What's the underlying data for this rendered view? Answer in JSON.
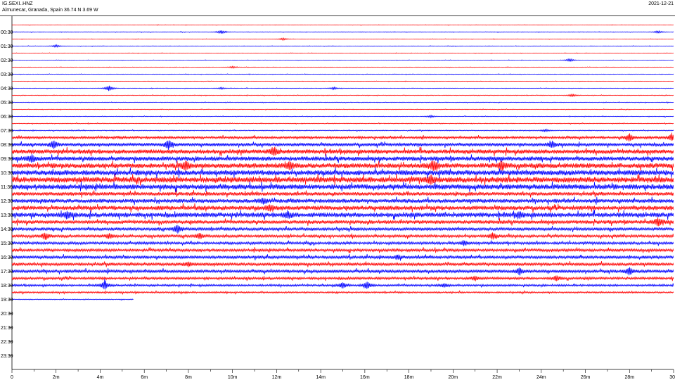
{
  "header": {
    "station": "IG.SEXI..HNZ",
    "location": "Almunecar, Granada, Spain  36.74 N 3.69 W",
    "date": "2021-12-21"
  },
  "chart_data": {
    "type": "line",
    "title": "IG.SEXI..HNZ",
    "subtitle": "Almunecar, Granada, Spain  36.74 N 3.69 W",
    "date": "2021-12-21",
    "xlabel": "",
    "ylabel": "",
    "xlim": [
      0,
      30
    ],
    "x_ticks": [
      "0",
      "2m",
      "4m",
      "6m",
      "8m",
      "10m",
      "12m",
      "14m",
      "16m",
      "18m",
      "20m",
      "22m",
      "24m",
      "26m",
      "28m",
      "30"
    ],
    "y_tick_labels": [
      "00:30",
      "01:30",
      "02:30",
      "03:30",
      "04:30",
      "05:30",
      "06:30",
      "07:30",
      "08:30",
      "09:30",
      "10:30",
      "11:30",
      "12:30",
      "13:30",
      "14:30",
      "15:30",
      "16:30",
      "17:30",
      "18:30",
      "19:30",
      "20:30",
      "21:30",
      "22:30",
      "23:30"
    ],
    "trace_count": 40,
    "last_trace_end_minute": 5.5,
    "colors": [
      "#ff0000",
      "#0000ff"
    ],
    "amplitude": [
      0.2,
      0.3,
      0.2,
      0.25,
      0.2,
      0.2,
      0.25,
      0.25,
      0.2,
      0.25,
      0.3,
      0.3,
      0.3,
      0.3,
      0.35,
      0.45,
      1.2,
      1.6,
      2.2,
      2.2,
      2.5,
      2.6,
      2.8,
      2.6,
      1.8,
      2.0,
      2.2,
      2.4,
      1.8,
      1.6,
      1.4,
      1.3,
      1.4,
      1.5,
      1.5,
      1.5,
      1.2,
      1.0,
      0.8,
      0.4
    ],
    "events": [
      {
        "trace": 1,
        "minute": 9.5,
        "amp": 2.2
      },
      {
        "trace": 1,
        "minute": 29.3,
        "amp": 1.6
      },
      {
        "trace": 2,
        "minute": 12.3,
        "amp": 1.4
      },
      {
        "trace": 3,
        "minute": 2.0,
        "amp": 1.6
      },
      {
        "trace": 5,
        "minute": 25.3,
        "amp": 2.0
      },
      {
        "trace": 6,
        "minute": 10.0,
        "amp": 1.2
      },
      {
        "trace": 9,
        "minute": 4.4,
        "amp": 4.0
      },
      {
        "trace": 9,
        "minute": 14.6,
        "amp": 1.5
      },
      {
        "trace": 9,
        "minute": 9.5,
        "amp": 1.2
      },
      {
        "trace": 10,
        "minute": 25.4,
        "amp": 1.8
      },
      {
        "trace": 13,
        "minute": 19.0,
        "amp": 1.4
      },
      {
        "trace": 15,
        "minute": 24.2,
        "amp": 1.5
      },
      {
        "trace": 16,
        "minute": 28.0,
        "amp": 5.0
      },
      {
        "trace": 16,
        "minute": 29.9,
        "amp": 4.0
      },
      {
        "trace": 17,
        "minute": 1.9,
        "amp": 5.0
      },
      {
        "trace": 17,
        "minute": 7.1,
        "amp": 6.0
      },
      {
        "trace": 17,
        "minute": 24.5,
        "amp": 4.0
      },
      {
        "trace": 18,
        "minute": 11.9,
        "amp": 5.0
      },
      {
        "trace": 19,
        "minute": 0.9,
        "amp": 4.0
      },
      {
        "trace": 20,
        "minute": 7.9,
        "amp": 5.0
      },
      {
        "trace": 20,
        "minute": 12.6,
        "amp": 4.0
      },
      {
        "trace": 20,
        "minute": 19.1,
        "amp": 6.0
      },
      {
        "trace": 20,
        "minute": 22.2,
        "amp": 5.0
      },
      {
        "trace": 22,
        "minute": 19.0,
        "amp": 4.5
      },
      {
        "trace": 25,
        "minute": 11.4,
        "amp": 3.0
      },
      {
        "trace": 26,
        "minute": 11.7,
        "amp": 3.0
      },
      {
        "trace": 27,
        "minute": 2.5,
        "amp": 4.0
      },
      {
        "trace": 27,
        "minute": 12.5,
        "amp": 4.0
      },
      {
        "trace": 27,
        "minute": 23.0,
        "amp": 3.0
      },
      {
        "trace": 28,
        "minute": 29.3,
        "amp": 5.0
      },
      {
        "trace": 29,
        "minute": 7.5,
        "amp": 5.0
      },
      {
        "trace": 30,
        "minute": 1.5,
        "amp": 4.0
      },
      {
        "trace": 30,
        "minute": 8.5,
        "amp": 3.5
      },
      {
        "trace": 30,
        "minute": 21.8,
        "amp": 4.0
      },
      {
        "trace": 30,
        "minute": 4.4,
        "amp": 3.0
      },
      {
        "trace": 31,
        "minute": 20.5,
        "amp": 3.0
      },
      {
        "trace": 33,
        "minute": 17.5,
        "amp": 2.5
      },
      {
        "trace": 34,
        "minute": 8.0,
        "amp": 2.5
      },
      {
        "trace": 35,
        "minute": 23.0,
        "amp": 4.0
      },
      {
        "trace": 35,
        "minute": 28.0,
        "amp": 5.0
      },
      {
        "trace": 36,
        "minute": 21.0,
        "amp": 3.0
      },
      {
        "trace": 36,
        "minute": 24.7,
        "amp": 3.5
      },
      {
        "trace": 37,
        "minute": 4.2,
        "amp": 6.0
      },
      {
        "trace": 37,
        "minute": 15.0,
        "amp": 4.0
      },
      {
        "trace": 37,
        "minute": 16.1,
        "amp": 4.5
      },
      {
        "trace": 37,
        "minute": 19.6,
        "amp": 2.5
      }
    ]
  }
}
